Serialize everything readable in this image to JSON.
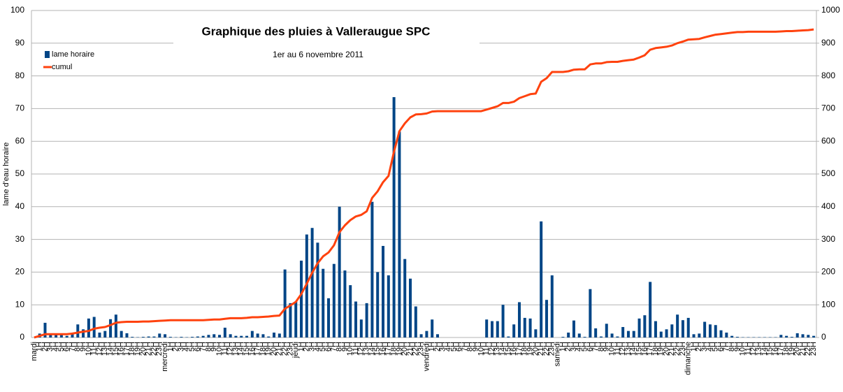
{
  "chart_data": {
    "type": "bar",
    "title": "Graphique des pluies à Valleraugue SPC",
    "subtitle": "1er au 6 novembre 2011",
    "y_label": "lame d'eau horaire",
    "legend": "top-left",
    "grid": true,
    "ylim": [
      0,
      100
    ],
    "yticks": [
      0,
      10,
      20,
      30,
      40,
      50,
      60,
      70,
      80,
      90,
      100
    ],
    "y2lim": [
      0,
      1000
    ],
    "y2ticks": [
      0,
      100,
      200,
      300,
      400,
      500,
      600,
      700,
      800,
      900,
      1000
    ],
    "categories": [
      "mardi",
      "1H",
      "2H",
      "3H",
      "4H",
      "5H",
      "6H",
      "7H",
      "8H",
      "9H",
      "10H",
      "11H",
      "12H",
      "13H",
      "14H",
      "15H",
      "16H",
      "17H",
      "18H",
      "19H",
      "20H",
      "21H",
      "22H",
      "23H",
      "mercredi",
      "1H",
      "2H",
      "3H",
      "4H",
      "5H",
      "6H",
      "7H",
      "8H",
      "9H",
      "10H",
      "11H",
      "12H",
      "13H",
      "14H",
      "15H",
      "16H",
      "17H",
      "18H",
      "19H",
      "20H",
      "21H",
      "22H",
      "23H",
      "jeudi",
      "1H",
      "2H",
      "3H",
      "4H",
      "5H",
      "6H",
      "7H",
      "8H",
      "9H",
      "10H",
      "11H",
      "12H",
      "13H",
      "14H",
      "15H",
      "16H",
      "17H",
      "18H",
      "19H",
      "20H",
      "21H",
      "22H",
      "23H",
      "vendredi",
      "1H",
      "2H",
      "3H",
      "4H",
      "5H",
      "6H",
      "7H",
      "8H",
      "9H",
      "10H",
      "11H",
      "12H",
      "13H",
      "14H",
      "15H",
      "16H",
      "17H",
      "18H",
      "19H",
      "20H",
      "21H",
      "22H",
      "23H",
      "samedi",
      "1H",
      "2H",
      "3H",
      "4H",
      "5H",
      "6H",
      "7H",
      "8H",
      "9H",
      "10H",
      "11H",
      "12H",
      "13H",
      "14H",
      "15H",
      "16H",
      "17H",
      "18H",
      "19H",
      "20H",
      "21H",
      "22H",
      "23H",
      "dimanche",
      "1H",
      "2H",
      "3H",
      "4H",
      "5H",
      "6H",
      "7H",
      "8H",
      "9H",
      "10H",
      "11H",
      "12H",
      "13H",
      "14H",
      "15H",
      "16H",
      "17H",
      "18H",
      "19H",
      "20H",
      "21H",
      "22H",
      "23H"
    ],
    "series": [
      {
        "name": "lame horaire",
        "color": "#004586",
        "type": "bar",
        "values": [
          0,
          1.2,
          4.5,
          1,
          0.8,
          0.8,
          0.5,
          1,
          4,
          2.5,
          5.8,
          6.3,
          1.5,
          2,
          5.6,
          7,
          2,
          1.3,
          0.2,
          0.1,
          0.2,
          0.3,
          0.3,
          1.2,
          1,
          0.2,
          0.1,
          0.2,
          0.1,
          0.2,
          0.3,
          0.5,
          0.8,
          1,
          0.8,
          3,
          1,
          0.5,
          0.5,
          0.5,
          2,
          1.2,
          1,
          0.3,
          1.5,
          1.2,
          20.8,
          10.5,
          11,
          23.5,
          31.5,
          33.5,
          29,
          21,
          12,
          22.5,
          40,
          20.5,
          16,
          11,
          5.5,
          10.5,
          41.5,
          20,
          28,
          19,
          73.5,
          63,
          24,
          18,
          9.5,
          1,
          2,
          5.5,
          1,
          0,
          0,
          0,
          0,
          0,
          0,
          0,
          0,
          5.5,
          5,
          5,
          10,
          0.3,
          4,
          10.8,
          6,
          5.8,
          2.5,
          35.5,
          11.5,
          19,
          0,
          0.2,
          1.5,
          5.2,
          1.2,
          0.2,
          14.8,
          2.8,
          0.3,
          4.2,
          1.2,
          0.3,
          3.2,
          2,
          2,
          5.8,
          6.8,
          17,
          5,
          1.8,
          2.5,
          4,
          7,
          5.3,
          6,
          1,
          1.2,
          4.8,
          4,
          3.8,
          2.2,
          1.5,
          0.5,
          0.2,
          0.1,
          0.1,
          0.1,
          0.1,
          0.1,
          0.1,
          0.1,
          0.8,
          0.5,
          0.2,
          1.3,
          1,
          0.8,
          0.5
        ]
      },
      {
        "name": "cumul",
        "color": "#ff420e",
        "type": "line",
        "axis": "y2",
        "values": [
          0,
          5,
          10,
          10,
          10,
          10,
          10,
          12,
          15,
          18,
          20,
          27,
          30,
          32,
          38,
          45,
          47,
          48,
          48,
          48,
          49,
          49,
          50,
          51,
          52,
          53,
          53,
          53,
          53,
          53,
          53,
          53,
          54,
          55,
          55,
          57,
          59,
          59,
          59,
          60,
          62,
          62,
          63,
          64,
          66,
          67,
          88,
          98,
          109,
          133,
          164,
          198,
          227,
          248,
          260,
          282,
          322,
          343,
          359,
          370,
          375,
          386,
          427,
          447,
          475,
          494,
          568,
          631,
          655,
          673,
          682,
          683,
          685,
          691,
          692,
          692,
          692,
          692,
          692,
          692,
          692,
          692,
          692,
          697,
          702,
          707,
          717,
          717,
          721,
          732,
          738,
          744,
          746,
          782,
          793,
          812,
          812,
          812,
          814,
          819,
          820,
          820,
          835,
          838,
          838,
          842,
          843,
          843,
          846,
          848,
          850,
          856,
          863,
          880,
          885,
          887,
          889,
          893,
          900,
          905,
          911,
          912,
          913,
          918,
          922,
          926,
          928,
          930,
          932,
          934,
          934,
          935,
          935,
          935,
          935,
          935,
          935,
          936,
          937,
          937,
          938,
          939,
          940,
          942
        ]
      }
    ]
  }
}
